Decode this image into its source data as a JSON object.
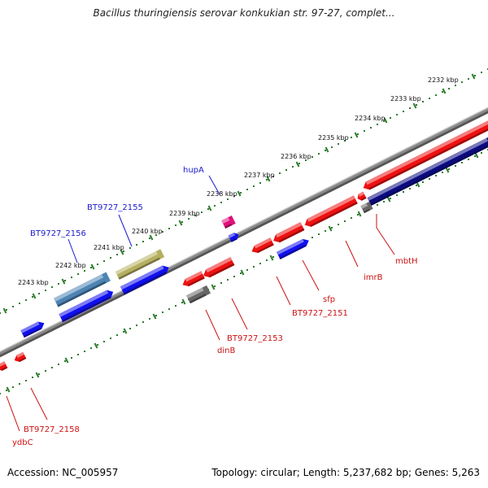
{
  "title": "Bacillus thuringiensis serovar konkukian str. 97-27, complet...",
  "footer": {
    "accession": "Accession: NC_005957",
    "stats": "Topology: circular; Length: 5,237,682 bp; Genes: 5,263"
  },
  "colors": {
    "background": "#ffffff",
    "backbone": "#8a8a8a",
    "scale_dots": "#2e7d2e",
    "forward_gene": "#1010ee",
    "reverse_gene": "#ee1111",
    "pseudo_gray": "#666666",
    "pink_gene": "#e0107a",
    "olive_gene": "#b5b060",
    "steelblue_gene": "#4d84b5",
    "navy_gene": "#0a0a80",
    "forward_label": "#1a1acc",
    "reverse_label": "#cc1111"
  },
  "scale_labels": [
    "2232 kbp",
    "2233 kbp",
    "2234 kbp",
    "2235 kbp",
    "2236 kbp",
    "2237 kbp",
    "2238 kbp",
    "2239 kbp",
    "2240 kbp",
    "2241 kbp",
    "2242 kbp",
    "2243 kbp"
  ],
  "gene_labels": {
    "forward": [
      "hupA",
      "BT9727_2155",
      "BT9727_2156"
    ],
    "reverse": [
      "mbtH",
      "imrB",
      "sfp",
      "BT9727_2151",
      "BT9727_2153",
      "dinB",
      "BT9727_2158",
      "ydbC"
    ]
  }
}
